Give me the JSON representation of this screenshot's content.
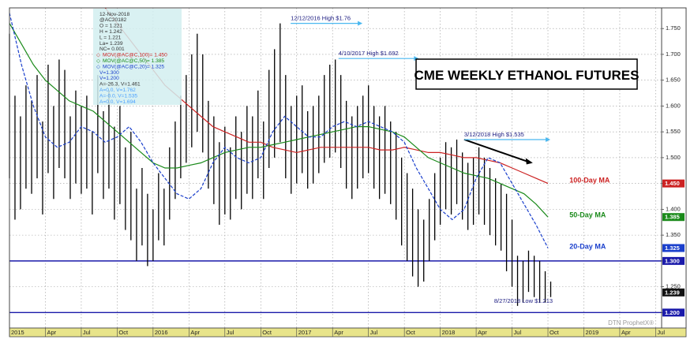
{
  "chart_data": {
    "type": "bar",
    "title": "CME WEEKLY ETHANOL FUTURES",
    "xlabel": "",
    "ylabel": "",
    "ylim": [
      1.17,
      1.79
    ],
    "grid": true,
    "y_ticks": [
      1.2,
      1.25,
      1.3,
      1.35,
      1.4,
      1.45,
      1.5,
      1.55,
      1.6,
      1.65,
      1.7,
      1.75
    ],
    "y_tick_labels": [
      "1.200",
      "1.250",
      "1.300",
      "1.350",
      "1.400",
      "1.450",
      "1.500",
      "1.550",
      "1.600",
      "1.650",
      "1.700",
      "1.750"
    ],
    "x_ticks": [
      {
        "label": "2015",
        "t": 0
      },
      {
        "label": "Apr",
        "t": 3
      },
      {
        "label": "Jul",
        "t": 6
      },
      {
        "label": "Oct",
        "t": 9
      },
      {
        "label": "2016",
        "t": 12
      },
      {
        "label": "Apr",
        "t": 15
      },
      {
        "label": "Jul",
        "t": 18
      },
      {
        "label": "Oct",
        "t": 21
      },
      {
        "label": "2017",
        "t": 24
      },
      {
        "label": "Apr",
        "t": 27
      },
      {
        "label": "Jul",
        "t": 30
      },
      {
        "label": "Oct",
        "t": 33
      },
      {
        "label": "2018",
        "t": 36
      },
      {
        "label": "Apr",
        "t": 39
      },
      {
        "label": "Jul",
        "t": 42
      },
      {
        "label": "Oct",
        "t": 45
      },
      {
        "label": "2019",
        "t": 48
      },
      {
        "label": "Apr",
        "t": 51
      },
      {
        "label": "Jul",
        "t": 54
      }
    ],
    "x_range": [
      0,
      54.5
    ],
    "bar_color": "#000000",
    "price_bars": {
      "t": [
        0,
        0.46,
        0.92,
        1.38,
        1.85,
        2.31,
        2.77,
        3.23,
        3.69,
        4.15,
        4.62,
        5.08,
        5.54,
        6,
        6.46,
        6.92,
        7.38,
        7.85,
        8.31,
        8.77,
        9.23,
        9.69,
        10.15,
        10.62,
        11.08,
        11.54,
        12,
        12.46,
        12.92,
        13.38,
        13.85,
        14.31,
        14.77,
        15.23,
        15.69,
        16.15,
        16.62,
        17.08,
        17.54,
        18,
        18.46,
        18.92,
        19.38,
        19.85,
        20.31,
        20.77,
        21.23,
        21.69,
        22.15,
        22.62,
        23.08,
        23.54,
        24,
        24.46,
        24.92,
        25.38,
        25.85,
        26.31,
        26.77,
        27.23,
        27.69,
        28.15,
        28.62,
        29.08,
        29.54,
        30,
        30.46,
        30.92,
        31.38,
        31.85,
        32.31,
        32.77,
        33.23,
        33.69,
        34.15,
        34.62,
        35.08,
        35.54,
        36,
        36.46,
        36.92,
        37.38,
        37.85,
        38.31,
        38.77,
        39.23,
        39.69,
        40.15,
        40.62,
        41.08,
        41.54,
        42,
        42.46,
        42.92,
        43.38,
        43.85,
        44.31,
        44.77,
        45.23
      ],
      "high": [
        1.74,
        1.62,
        1.58,
        1.64,
        1.61,
        1.66,
        1.57,
        1.68,
        1.6,
        1.69,
        1.67,
        1.58,
        1.63,
        1.6,
        1.62,
        1.55,
        1.66,
        1.59,
        1.63,
        1.56,
        1.6,
        1.52,
        1.55,
        1.44,
        1.48,
        1.43,
        1.4,
        1.47,
        1.44,
        1.52,
        1.57,
        1.62,
        1.66,
        1.7,
        1.74,
        1.7,
        1.61,
        1.58,
        1.53,
        1.56,
        1.52,
        1.58,
        1.55,
        1.6,
        1.58,
        1.63,
        1.57,
        1.67,
        1.71,
        1.76,
        1.66,
        1.6,
        1.62,
        1.64,
        1.59,
        1.6,
        1.62,
        1.66,
        1.68,
        1.69,
        1.66,
        1.61,
        1.58,
        1.6,
        1.62,
        1.64,
        1.6,
        1.58,
        1.6,
        1.57,
        1.55,
        1.5,
        1.47,
        1.44,
        1.4,
        1.38,
        1.42,
        1.47,
        1.5,
        1.53,
        1.52,
        1.535,
        1.51,
        1.49,
        1.5,
        1.52,
        1.5,
        1.48,
        1.46,
        1.45,
        1.43,
        1.38,
        1.31,
        1.3,
        1.32,
        1.31,
        1.3,
        1.28,
        1.26
      ],
      "low": [
        1.46,
        1.38,
        1.4,
        1.44,
        1.43,
        1.46,
        1.39,
        1.47,
        1.42,
        1.48,
        1.46,
        1.42,
        1.45,
        1.43,
        1.44,
        1.39,
        1.47,
        1.42,
        1.44,
        1.38,
        1.41,
        1.36,
        1.34,
        1.3,
        1.33,
        1.29,
        1.3,
        1.34,
        1.33,
        1.38,
        1.42,
        1.46,
        1.49,
        1.52,
        1.55,
        1.51,
        1.44,
        1.41,
        1.37,
        1.39,
        1.38,
        1.42,
        1.4,
        1.43,
        1.42,
        1.46,
        1.42,
        1.48,
        1.5,
        1.53,
        1.46,
        1.43,
        1.45,
        1.47,
        1.44,
        1.45,
        1.47,
        1.49,
        1.5,
        1.51,
        1.48,
        1.44,
        1.42,
        1.44,
        1.46,
        1.47,
        1.44,
        1.42,
        1.43,
        1.41,
        1.38,
        1.33,
        1.3,
        1.27,
        1.25,
        1.26,
        1.3,
        1.34,
        1.37,
        1.4,
        1.39,
        1.41,
        1.38,
        1.36,
        1.37,
        1.39,
        1.37,
        1.35,
        1.33,
        1.32,
        1.28,
        1.25,
        1.213,
        1.22,
        1.24,
        1.23,
        1.22,
        1.22,
        1.23
      ]
    },
    "series": [
      {
        "name": "100-Day MA",
        "color": "#cc2222",
        "x": [
          8,
          9,
          10,
          11,
          12,
          13,
          14,
          15,
          16,
          17,
          18,
          19,
          20,
          21,
          22,
          23,
          24,
          25,
          26,
          27,
          28,
          29,
          30,
          31,
          32,
          33,
          34,
          35,
          36,
          37,
          38,
          39,
          40,
          41,
          42,
          43,
          44,
          45
        ],
        "values": [
          1.79,
          1.76,
          1.73,
          1.7,
          1.67,
          1.64,
          1.62,
          1.6,
          1.58,
          1.56,
          1.55,
          1.54,
          1.53,
          1.53,
          1.52,
          1.515,
          1.51,
          1.515,
          1.52,
          1.52,
          1.52,
          1.52,
          1.52,
          1.515,
          1.515,
          1.52,
          1.515,
          1.51,
          1.51,
          1.505,
          1.5,
          1.5,
          1.495,
          1.49,
          1.48,
          1.47,
          1.46,
          1.45
        ]
      },
      {
        "name": "50-Day MA",
        "color": "#1a8a1a",
        "x": [
          0,
          1,
          2,
          3,
          4,
          5,
          6,
          7,
          8,
          9,
          10,
          11,
          12,
          13,
          14,
          15,
          16,
          17,
          18,
          19,
          20,
          21,
          22,
          23,
          24,
          25,
          26,
          27,
          28,
          29,
          30,
          31,
          32,
          33,
          34,
          35,
          36,
          37,
          38,
          39,
          40,
          41,
          42,
          43,
          44,
          45
        ],
        "values": [
          1.76,
          1.72,
          1.68,
          1.65,
          1.63,
          1.61,
          1.6,
          1.59,
          1.57,
          1.55,
          1.53,
          1.51,
          1.49,
          1.48,
          1.48,
          1.485,
          1.49,
          1.5,
          1.51,
          1.515,
          1.52,
          1.52,
          1.525,
          1.53,
          1.535,
          1.54,
          1.545,
          1.55,
          1.555,
          1.56,
          1.56,
          1.555,
          1.55,
          1.54,
          1.52,
          1.5,
          1.49,
          1.48,
          1.47,
          1.465,
          1.46,
          1.45,
          1.44,
          1.43,
          1.41,
          1.385
        ]
      },
      {
        "name": "20-Day MA",
        "color": "#1a3fcc",
        "x": [
          0,
          1,
          2,
          3,
          4,
          5,
          6,
          7,
          8,
          9,
          10,
          11,
          12,
          13,
          14,
          15,
          16,
          17,
          18,
          19,
          20,
          21,
          22,
          23,
          24,
          25,
          26,
          27,
          28,
          29,
          30,
          31,
          32,
          33,
          34,
          35,
          36,
          37,
          38,
          39,
          40,
          41,
          42,
          43,
          44,
          45
        ],
        "values": [
          1.78,
          1.68,
          1.6,
          1.54,
          1.52,
          1.53,
          1.56,
          1.55,
          1.53,
          1.54,
          1.56,
          1.53,
          1.49,
          1.46,
          1.43,
          1.42,
          1.44,
          1.49,
          1.52,
          1.5,
          1.49,
          1.5,
          1.55,
          1.58,
          1.56,
          1.54,
          1.54,
          1.56,
          1.57,
          1.56,
          1.57,
          1.56,
          1.55,
          1.53,
          1.48,
          1.44,
          1.4,
          1.38,
          1.4,
          1.46,
          1.5,
          1.49,
          1.45,
          1.41,
          1.37,
          1.325
        ]
      }
    ],
    "ma_labels": [
      {
        "text": "100-Day MA",
        "color": "#cc2222"
      },
      {
        "text": "50-Day MA",
        "color": "#1a8a1a"
      },
      {
        "text": "20-Day MA",
        "color": "#1a3fcc"
      }
    ],
    "horizontal_lines": [
      {
        "value": 1.3,
        "color": "#1a1aaa"
      },
      {
        "value": 1.2,
        "color": "#1a1aaa"
      }
    ],
    "price_tags": [
      {
        "value": 1.45,
        "label": "1.450",
        "bg": "#cc2222",
        "fg": "#ffffff"
      },
      {
        "value": 1.385,
        "label": "1.385",
        "bg": "#1a8a1a",
        "fg": "#ffffff"
      },
      {
        "value": 1.325,
        "label": "1.325",
        "bg": "#1a3fcc",
        "fg": "#ffffff"
      },
      {
        "value": 1.3,
        "label": "1.300",
        "bg": "#1a1aaa",
        "fg": "#ffffff"
      },
      {
        "value": 1.239,
        "label": "1.239",
        "bg": "#111111",
        "fg": "#ffffff"
      },
      {
        "value": 1.2,
        "label": "1.200",
        "bg": "#1a1aaa",
        "fg": "#ffffff"
      }
    ],
    "annotations": [
      {
        "text": "12/12/2016 High $1.76",
        "t": 23.5,
        "value": 1.76,
        "arrow_to_t": 29.5,
        "color": "#1a1a80"
      },
      {
        "text": "4/10/2017 High $1.692",
        "t": 27.5,
        "value": 1.692,
        "arrow_to_t": 34.2,
        "color": "#1a1a80"
      },
      {
        "text": "3/12/2018 High $1.535",
        "t": 38.0,
        "value": 1.535,
        "arrow_to_t": 45.2,
        "color": "#1a1a80"
      },
      {
        "text": "8/27/2018 Low $1.213",
        "t": 40.5,
        "value": 1.213,
        "color": "#1a1a80"
      }
    ],
    "trendline": {
      "t": [
        38.0,
        43.6
      ],
      "values": [
        1.535,
        1.49
      ],
      "color": "#000000"
    },
    "legend_box": {
      "color": "#d2eef0",
      "lines": [
        {
          "text": "12-Nov-2018",
          "color": "#333333"
        },
        {
          "text": "@AC20182",
          "color": "#333333"
        },
        {
          "text": "O = 1.221",
          "color": "#333333"
        },
        {
          "text": "H = 1.242",
          "color": "#333333"
        },
        {
          "text": "L = 1.221",
          "color": "#333333"
        },
        {
          "text": "La= 1.239",
          "color": "#333333"
        },
        {
          "text": "NC= 0.001",
          "color": "#333333"
        },
        {
          "text": "MOV(@AC@C,100)= 1.450",
          "color": "#cc2222"
        },
        {
          "text": "MOV(@AC@C,50)= 1.385",
          "color": "#1a8a1a"
        },
        {
          "text": "MOV(@AC@C,20)= 1.325",
          "color": "#1a3fcc"
        },
        {
          "text": "V=1.300",
          "color": "#1a3fcc"
        },
        {
          "text": "V=1.200",
          "color": "#1a3fcc"
        },
        {
          "text": "A=-26.3, V=1.461",
          "color": "#333333"
        },
        {
          "text": "A=0.0, V=1.762",
          "color": "#4aa0ff"
        },
        {
          "text": "A=-0.0, V=1.535",
          "color": "#4aa0ff"
        },
        {
          "text": "A=0.0, V=1.694",
          "color": "#4aa0ff"
        }
      ]
    },
    "watermark": "DTN ProphetX®"
  }
}
